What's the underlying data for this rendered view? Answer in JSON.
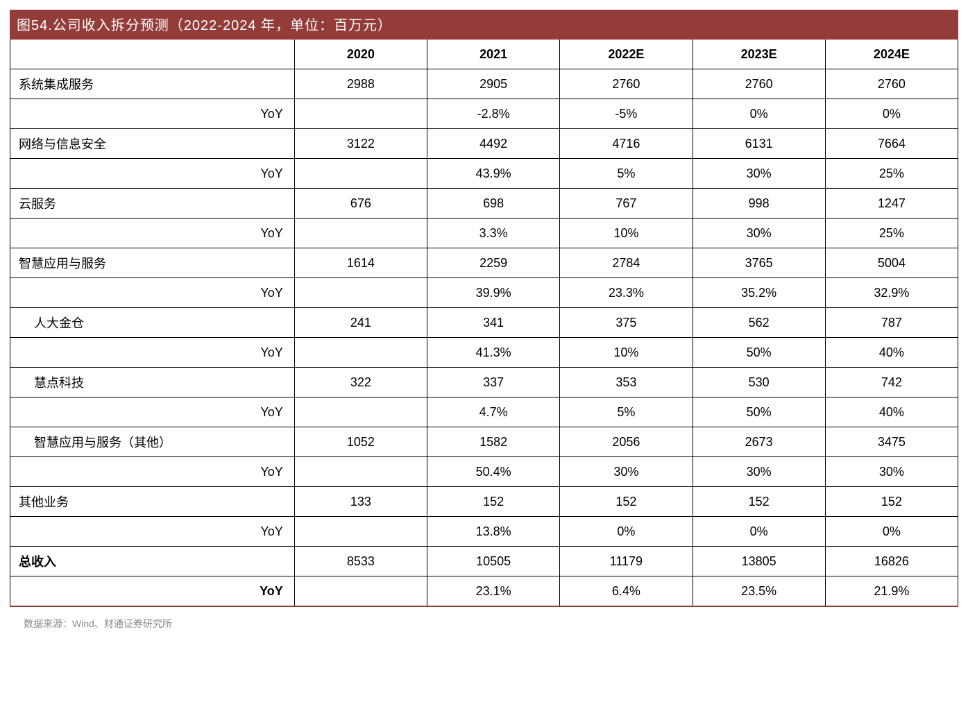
{
  "title": "图54.公司收入拆分预测（2022-2024 年，单位：百万元）",
  "source": "数据来源：Wind、财通证券研究所",
  "yoy_label": "YoY",
  "columns": [
    "2020",
    "2021",
    "2022E",
    "2023E",
    "2024E"
  ],
  "colors": {
    "header_bg": "#943c3a",
    "header_text": "#ffffff",
    "border": "#000000",
    "rule": "#943c3a",
    "source_text": "#8a8a8a",
    "page_bg": "#ffffff"
  },
  "rows": [
    {
      "label": "系统集成服务",
      "indent": 0,
      "bold": false,
      "values": [
        "2988",
        "2905",
        "2760",
        "2760",
        "2760"
      ],
      "yoy": [
        "",
        "-2.8%",
        "-5%",
        "0%",
        "0%"
      ]
    },
    {
      "label": "网络与信息安全",
      "indent": 0,
      "bold": false,
      "values": [
        "3122",
        "4492",
        "4716",
        "6131",
        "7664"
      ],
      "yoy": [
        "",
        "43.9%",
        "5%",
        "30%",
        "25%"
      ]
    },
    {
      "label": "云服务",
      "indent": 0,
      "bold": false,
      "values": [
        "676",
        "698",
        "767",
        "998",
        "1247"
      ],
      "yoy": [
        "",
        "3.3%",
        "10%",
        "30%",
        "25%"
      ]
    },
    {
      "label": "智慧应用与服务",
      "indent": 0,
      "bold": false,
      "values": [
        "1614",
        "2259",
        "2784",
        "3765",
        "5004"
      ],
      "yoy": [
        "",
        "39.9%",
        "23.3%",
        "35.2%",
        "32.9%"
      ]
    },
    {
      "label": "人大金仓",
      "indent": 1,
      "bold": false,
      "values": [
        "241",
        "341",
        "375",
        "562",
        "787"
      ],
      "yoy": [
        "",
        "41.3%",
        "10%",
        "50%",
        "40%"
      ]
    },
    {
      "label": "慧点科技",
      "indent": 1,
      "bold": false,
      "values": [
        "322",
        "337",
        "353",
        "530",
        "742"
      ],
      "yoy": [
        "",
        "4.7%",
        "5%",
        "50%",
        "40%"
      ]
    },
    {
      "label": "智慧应用与服务（其他）",
      "indent": 1,
      "bold": false,
      "values": [
        "1052",
        "1582",
        "2056",
        "2673",
        "3475"
      ],
      "yoy": [
        "",
        "50.4%",
        "30%",
        "30%",
        "30%"
      ]
    },
    {
      "label": "其他业务",
      "indent": 0,
      "bold": false,
      "values": [
        "133",
        "152",
        "152",
        "152",
        "152"
      ],
      "yoy": [
        "",
        "13.8%",
        "0%",
        "0%",
        "0%"
      ]
    },
    {
      "label": "总收入",
      "indent": 0,
      "bold": true,
      "values": [
        "8533",
        "10505",
        "11179",
        "13805",
        "16826"
      ],
      "yoy": [
        "",
        "23.1%",
        "6.4%",
        "23.5%",
        "21.9%"
      ]
    }
  ]
}
